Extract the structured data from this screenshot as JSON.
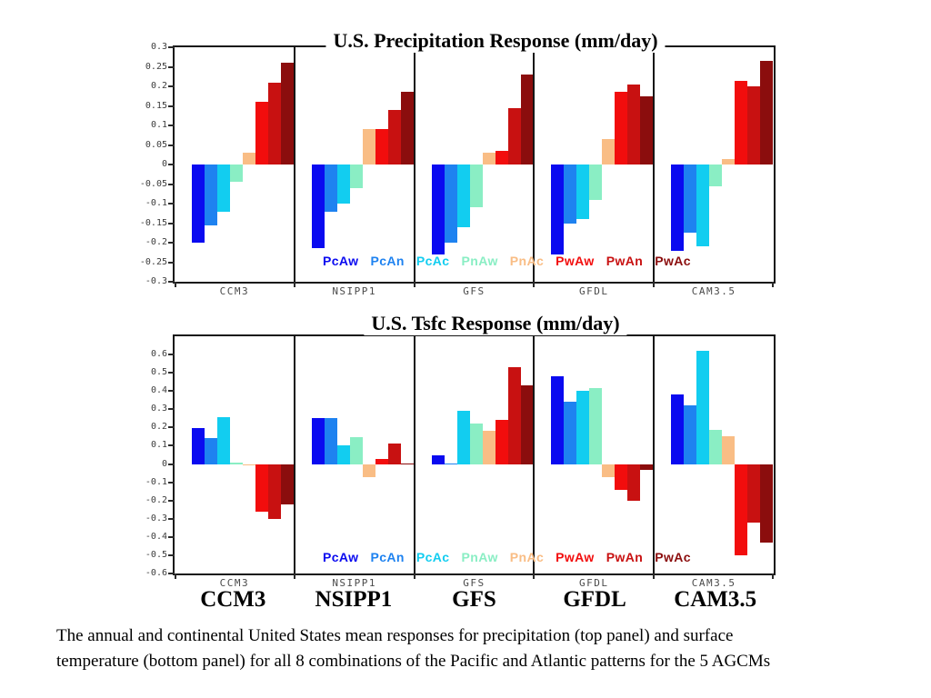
{
  "slide": {
    "caption_line1": "The annual and continental United States mean responses for precipitation (top panel) and surface",
    "caption_line2": "temperature (bottom panel) for all 8 combinations of the Pacific and Atlantic patterns for the 5 AGCMs",
    "model_labels": [
      "CCM3",
      "NSIPP1",
      "GFS",
      "GFDL",
      "CAM3.5"
    ]
  },
  "chart_data": [
    {
      "type": "bar",
      "title": "U.S. Precipitation Response (mm/day)",
      "categories": [
        "CCM3",
        "NSIPP1",
        "GFS",
        "GFDL",
        "CAM3.5"
      ],
      "ylabel": "",
      "ylim": [
        -0.3,
        0.3
      ],
      "yticks": [
        "0.3",
        "0.25",
        "0.2",
        "0.15",
        "0.1",
        "0.05",
        "0",
        "-0.05",
        "-0.1",
        "-0.15",
        "-0.2",
        "-0.25",
        "-0.3"
      ],
      "grid": false,
      "legend_position": "inside-bottom",
      "series": [
        {
          "name": "PcAw",
          "color": "#0a0af0",
          "values": [
            -0.2,
            -0.215,
            -0.23,
            -0.23,
            -0.22
          ]
        },
        {
          "name": "PcAn",
          "color": "#1e82f0",
          "values": [
            -0.155,
            -0.12,
            -0.2,
            -0.15,
            -0.175
          ]
        },
        {
          "name": "PcAc",
          "color": "#12cdf0",
          "values": [
            -0.12,
            -0.1,
            -0.16,
            -0.14,
            -0.21
          ]
        },
        {
          "name": "PnAw",
          "color": "#8aeec4",
          "values": [
            -0.045,
            -0.06,
            -0.11,
            -0.09,
            -0.055
          ]
        },
        {
          "name": "PnAc",
          "color": "#f9bd85",
          "values": [
            0.03,
            0.09,
            0.03,
            0.065,
            0.015
          ]
        },
        {
          "name": "PwAw",
          "color": "#f20d0d",
          "values": [
            0.16,
            0.09,
            0.035,
            0.185,
            0.215
          ]
        },
        {
          "name": "PwAn",
          "color": "#c81111",
          "values": [
            0.21,
            0.14,
            0.145,
            0.205,
            0.2
          ]
        },
        {
          "name": "PwAc",
          "color": "#8b0d0d",
          "values": [
            0.26,
            0.185,
            0.23,
            0.175,
            0.265
          ]
        }
      ]
    },
    {
      "type": "bar",
      "title": "U.S. Tsfc Response (mm/day)",
      "categories": [
        "CCM3",
        "NSIPP1",
        "GFS",
        "GFDL",
        "CAM3.5"
      ],
      "ylabel": "",
      "ylim": [
        -0.6,
        0.7
      ],
      "yticks": [
        "0.6",
        "0.5",
        "0.4",
        "0.3",
        "0.2",
        "0.1",
        "0",
        "-0.1",
        "-0.2",
        "-0.3",
        "-0.4",
        "-0.5",
        "-0.6"
      ],
      "grid": false,
      "legend_position": "inside-bottom",
      "series": [
        {
          "name": "PcAw",
          "color": "#0a0af0",
          "values": [
            0.195,
            0.25,
            0.05,
            0.48,
            0.38
          ]
        },
        {
          "name": "PcAn",
          "color": "#1e82f0",
          "values": [
            0.14,
            0.25,
            0.005,
            0.34,
            0.32
          ]
        },
        {
          "name": "PcAc",
          "color": "#12cdf0",
          "values": [
            0.255,
            0.1,
            0.29,
            0.4,
            0.62
          ]
        },
        {
          "name": "PnAw",
          "color": "#8aeec4",
          "values": [
            0.01,
            0.145,
            0.22,
            0.415,
            0.185
          ]
        },
        {
          "name": "PnAc",
          "color": "#f9bd85",
          "values": [
            -0.005,
            -0.07,
            0.18,
            -0.07,
            0.15
          ]
        },
        {
          "name": "PwAw",
          "color": "#f20d0d",
          "values": [
            -0.26,
            0.03,
            0.24,
            -0.14,
            -0.5
          ]
        },
        {
          "name": "PwAn",
          "color": "#c81111",
          "values": [
            -0.3,
            0.11,
            0.53,
            -0.2,
            -0.32
          ]
        },
        {
          "name": "PwAc",
          "color": "#8b0d0d",
          "values": [
            -0.22,
            0.005,
            0.43,
            -0.03,
            -0.43
          ]
        }
      ]
    }
  ]
}
